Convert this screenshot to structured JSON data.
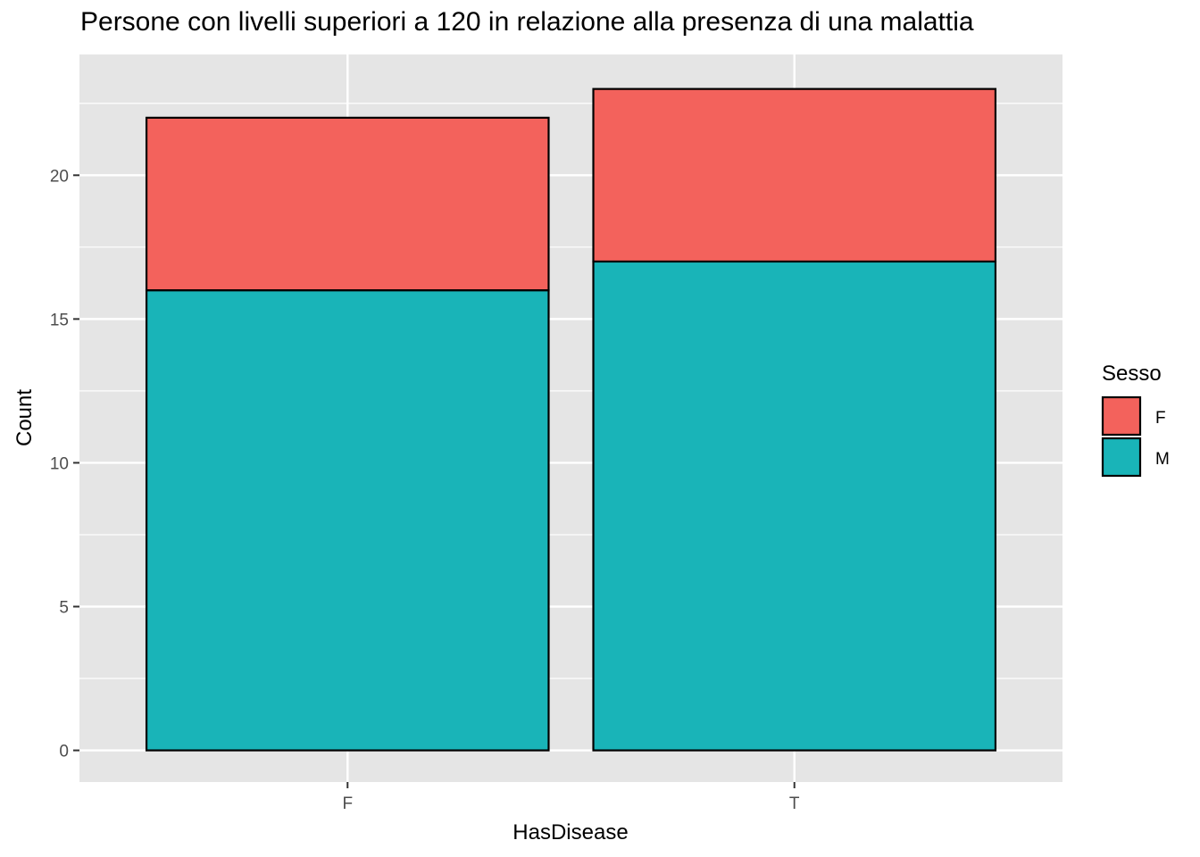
{
  "chart_data": {
    "type": "bar",
    "stacked": true,
    "title": "Persone con livelli superiori a 120 in relazione alla presenza di una malattia",
    "xlabel": "HasDisease",
    "ylabel": "Count",
    "categories": [
      "F",
      "T"
    ],
    "series": [
      {
        "name": "M",
        "values": [
          16,
          17
        ],
        "color": "#19b4b8"
      },
      {
        "name": "F",
        "values": [
          6,
          6
        ],
        "color": "#f3625c"
      }
    ],
    "ylim": [
      -1.1,
      24.2
    ],
    "yticks": [
      0,
      5,
      10,
      15,
      20
    ],
    "grid": true,
    "legend": {
      "title": "Sesso",
      "placement": "right",
      "entries": [
        {
          "label": "F",
          "color": "#f3625c"
        },
        {
          "label": "M",
          "color": "#19b4b8"
        }
      ]
    }
  }
}
